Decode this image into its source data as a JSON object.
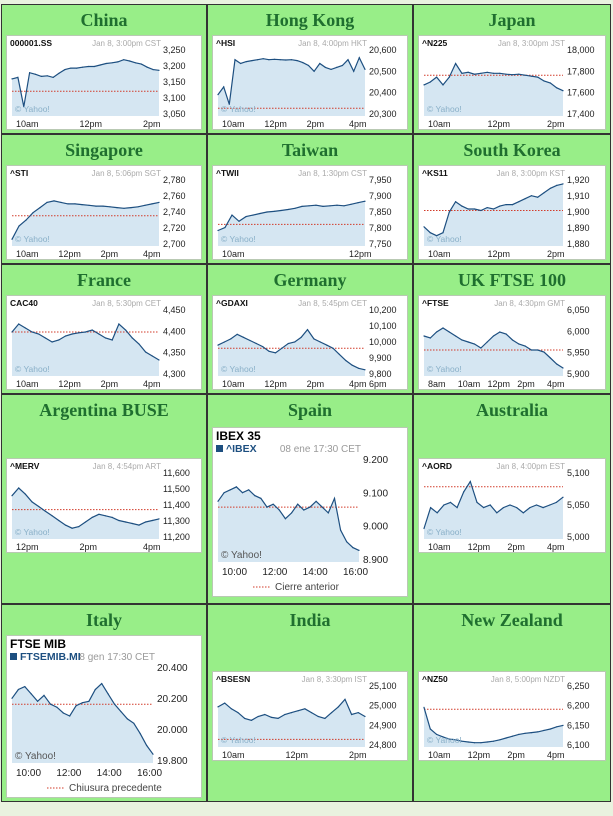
{
  "colors": {
    "cell_bg": "#98ee88",
    "title": "#1f6f2f",
    "line": "#1d4f80",
    "fill": "#d5e6f2",
    "ref": "#d23b2a"
  },
  "markets": [
    {
      "title": "China",
      "ticker": "000001.SS",
      "info": "Jan 8, 3:00pm CST",
      "watermark": "© Yahoo!",
      "xlabels": [
        "10am",
        "12pm",
        "2pm"
      ],
      "ylabels": [
        "3,250",
        "3,200",
        "3,150",
        "3,100",
        "3,050"
      ],
      "chart_data": {
        "type": "line",
        "ylim": [
          3040,
          3260
        ],
        "ref": 3120,
        "values": [
          3160,
          3165,
          3070,
          3180,
          3175,
          3168,
          3170,
          3165,
          3178,
          3190,
          3195,
          3195,
          3198,
          3200,
          3200,
          3205,
          3210,
          3212,
          3215,
          3222,
          3218,
          3212,
          3208,
          3198,
          3190,
          3188
        ]
      }
    },
    {
      "title": "Hong Kong",
      "ticker": "^HSI",
      "info": "Jan 8, 4:00pm HKT",
      "watermark": "© Yahoo!",
      "xlabels": [
        "10am",
        "12pm",
        "2pm",
        "4pm"
      ],
      "ylabels": [
        "20,600",
        "20,500",
        "20,400",
        "20,300"
      ],
      "chart_data": {
        "type": "line",
        "ylim": [
          20270,
          20620
        ],
        "ref": 20310,
        "values": [
          20380,
          20420,
          20330,
          20560,
          20540,
          20550,
          20555,
          20560,
          20565,
          20560,
          20562,
          20560,
          20558,
          20560,
          20555,
          20545,
          20530,
          20500,
          20540,
          20520,
          20510,
          20520,
          20530,
          20560,
          20500,
          20570,
          20510
        ]
      }
    },
    {
      "title": "Japan",
      "ticker": "^N225",
      "info": "Jan 8, 3:00pm JST",
      "watermark": "© Yahoo!",
      "xlabels": [
        "10am",
        "12pm",
        "2pm"
      ],
      "ylabels": [
        "18,000",
        "17,800",
        "17,600",
        "17,400"
      ],
      "chart_data": {
        "type": "line",
        "ylim": [
          17360,
          18060
        ],
        "ref": 17780,
        "values": [
          17680,
          17710,
          17760,
          17680,
          17760,
          17900,
          17800,
          17810,
          17790,
          17800,
          17810,
          17800,
          17800,
          17790,
          17785,
          17790,
          17780,
          17770,
          17760,
          17720,
          17700,
          17650,
          17620
        ]
      }
    },
    {
      "title": "Singapore",
      "ticker": "^STI",
      "info": "Jan 8, 5:06pm SGT",
      "watermark": "© Yahoo!",
      "xlabels": [
        "10am",
        "12pm",
        "2pm",
        "4pm"
      ],
      "ylabels": [
        "2,780",
        "2,760",
        "2,740",
        "2,720",
        "2,700"
      ],
      "chart_data": {
        "type": "line",
        "ylim": [
          2693,
          2785
        ],
        "ref": 2734,
        "values": [
          2702,
          2720,
          2728,
          2738,
          2745,
          2752,
          2754,
          2752,
          2750,
          2750,
          2749,
          2748,
          2747,
          2747,
          2746,
          2745,
          2744,
          2745,
          2746,
          2748,
          2750,
          2752
        ]
      }
    },
    {
      "title": "Taiwan",
      "ticker": "^TWII",
      "info": "Jan 8, 1:30pm CST",
      "watermark": "© Yahoo!",
      "xlabels": [
        "10am",
        "12pm"
      ],
      "ylabels": [
        "7,950",
        "7,900",
        "7,850",
        "7,800",
        "7,750"
      ],
      "chart_data": {
        "type": "line",
        "ylim": [
          7740,
          7960
        ],
        "ref": 7810,
        "values": [
          7790,
          7800,
          7840,
          7820,
          7835,
          7840,
          7845,
          7850,
          7852,
          7855,
          7858,
          7862,
          7868,
          7870,
          7872,
          7868,
          7870,
          7872,
          7870,
          7875,
          7880,
          7885
        ]
      }
    },
    {
      "title": "South Korea",
      "ticker": "^KS11",
      "info": "Jan 8, 3:00pm KST",
      "watermark": "© Yahoo!",
      "xlabels": [
        "10am",
        "12pm",
        "2pm"
      ],
      "ylabels": [
        "1,920",
        "1,910",
        "1,900",
        "1,890",
        "1,880"
      ],
      "chart_data": {
        "type": "line",
        "ylim": [
          1877,
          1923
        ],
        "ref": 1901,
        "values": [
          1890,
          1886,
          1884,
          1886,
          1900,
          1907,
          1904,
          1902,
          1902,
          1901,
          1903,
          1902,
          1904,
          1905,
          1905,
          1907,
          1909,
          1911,
          1910,
          1913,
          1916,
          1918,
          1919
        ]
      }
    },
    {
      "title": "France",
      "ticker": "CAC40",
      "info": "Jan 8, 5:30pm CET",
      "watermark": "© Yahoo!",
      "xlabels": [
        "10am",
        "12pm",
        "2pm",
        "4pm"
      ],
      "ylabels": [
        "4,450",
        "4,400",
        "4,350",
        "4,300"
      ],
      "chart_data": {
        "type": "line",
        "ylim": [
          4290,
          4460
        ],
        "ref": 4400,
        "values": [
          4400,
          4420,
          4410,
          4400,
          4395,
          4385,
          4375,
          4380,
          4390,
          4395,
          4398,
          4400,
          4405,
          4395,
          4385,
          4380,
          4420,
          4405,
          4385,
          4370,
          4350,
          4340,
          4330
        ]
      }
    },
    {
      "title": "Germany",
      "ticker": "^GDAXI",
      "info": "Jan 8, 5:45pm CET",
      "watermark": "© Yahoo!",
      "xlabels": [
        "10am",
        "12pm",
        "2pm",
        "4pm 6pm"
      ],
      "ylabels": [
        "10,200",
        "10,100",
        "10,000",
        "9,900",
        "9,800"
      ],
      "chart_data": {
        "type": "line",
        "ylim": [
          9780,
          10220
        ],
        "ref": 9960,
        "values": [
          9980,
          10000,
          10020,
          10050,
          10030,
          10010,
          9990,
          9970,
          9940,
          9930,
          9960,
          9990,
          10000,
          10030,
          10080,
          10020,
          10000,
          9980,
          9960,
          9920,
          9880,
          9850,
          9830,
          9820
        ]
      }
    },
    {
      "title": "UK FTSE 100",
      "ticker": "^FTSE",
      "info": "Jan 8, 4:30pm GMT",
      "watermark": "© Yahoo!",
      "xlabels": [
        "8am",
        "10am",
        "12pm",
        "2pm",
        "4pm"
      ],
      "ylabels": [
        "6,050",
        "6,000",
        "5,950",
        "5,900"
      ],
      "chart_data": {
        "type": "line",
        "ylim": [
          5890,
          6060
        ],
        "ref": 5955,
        "values": [
          5990,
          5985,
          6000,
          6010,
          6000,
          5990,
          5980,
          5975,
          5970,
          5960,
          5975,
          5990,
          6000,
          5995,
          5980,
          5970,
          5965,
          5955,
          5955,
          5950,
          5935,
          5920,
          5910
        ]
      }
    },
    {
      "title": "Argentina BUSE",
      "ticker": "^MERV",
      "info": "Jan 8, 4:54pm ART",
      "watermark": "© Yahoo!",
      "xlabels": [
        "12pm",
        "2pm",
        "4pm"
      ],
      "ylabels": [
        "11,600",
        "11,500",
        "11,400",
        "11,300",
        "11,200"
      ],
      "chart_data": {
        "type": "line",
        "ylim": [
          11180,
          11620
        ],
        "ref": 11370,
        "values": [
          11460,
          11510,
          11470,
          11420,
          11390,
          11360,
          11330,
          11300,
          11270,
          11250,
          11260,
          11290,
          11320,
          11340,
          11330,
          11320,
          11300,
          11290,
          11280,
          11270,
          11290,
          11300,
          11310
        ]
      }
    },
    {
      "title": "Spain",
      "ticker_label": "IBEX 35",
      "ticker": "^IBEX",
      "info": "08 ene 17:30 CET",
      "watermark": "© Yahoo!",
      "legend": "Cierre anterior",
      "xlabels": [
        "10:00",
        "12:00",
        "14:00",
        "16:00"
      ],
      "ylabels": [
        "9.200",
        "9.100",
        "9.000",
        "8.900"
      ],
      "chart_data": {
        "type": "line",
        "ylim": [
          8870,
          9230
        ],
        "ref": 9060,
        "values": [
          9080,
          9110,
          9120,
          9130,
          9110,
          9120,
          9100,
          9090,
          9060,
          9070,
          9050,
          9020,
          9040,
          9070,
          9050,
          9060,
          9080,
          9060,
          9040,
          9090,
          8980,
          8940,
          8920,
          8910
        ]
      }
    },
    {
      "title": "Australia",
      "ticker": "^AORD",
      "info": "Jan 8, 4:00pm EST",
      "watermark": "© Yahoo!",
      "xlabels": [
        "10am",
        "12pm",
        "2pm",
        "4pm"
      ],
      "ylabels": [
        "5,100",
        "5,050",
        "5,000"
      ],
      "chart_data": {
        "type": "line",
        "ylim": [
          4980,
          5110
        ],
        "ref": 5080,
        "values": [
          5000,
          5040,
          5030,
          5045,
          5050,
          5040,
          5070,
          5090,
          5050,
          5040,
          5045,
          5030,
          5040,
          5045,
          5040,
          5030,
          5040,
          5045,
          5040,
          5045,
          5050,
          5060
        ]
      }
    },
    {
      "title": "Italy",
      "ticker_label": "FTSE MIB",
      "ticker": "FTSEMIB.MI",
      "info": "8 gen 17:30 CET",
      "watermark": "© Yahoo!",
      "legend": "Chiusura precedente",
      "xlabels": [
        "10:00",
        "12:00",
        "14:00",
        "16:00"
      ],
      "ylabels": [
        "20.400",
        "20.200",
        "20.000",
        "19.800"
      ],
      "chart_data": {
        "type": "line",
        "ylim": [
          19780,
          20440
        ],
        "ref": 20180,
        "values": [
          20220,
          20280,
          20300,
          20250,
          20200,
          20240,
          20180,
          20160,
          20120,
          20100,
          20170,
          20190,
          20200,
          20280,
          20320,
          20250,
          20180,
          20130,
          20080,
          20050,
          19980,
          19900,
          19840
        ]
      }
    },
    {
      "title": "India",
      "ticker": "^BSESN",
      "info": "Jan 8, 3:30pm IST",
      "watermark": "© Yahoo!",
      "xlabels": [
        "10am",
        "12pm",
        "2pm"
      ],
      "ylabels": [
        "25,100",
        "25,000",
        "24,900",
        "24,800"
      ],
      "chart_data": {
        "type": "line",
        "ylim": [
          24780,
          25110
        ],
        "ref": 24820,
        "values": [
          24990,
          25010,
          24980,
          24960,
          24930,
          24920,
          24940,
          24950,
          24935,
          24930,
          24950,
          24960,
          24970,
          24980,
          24960,
          24940,
          24930,
          24960,
          24990,
          25030,
          24950,
          24960,
          24940
        ]
      }
    },
    {
      "title": "New Zealand",
      "ticker": "^NZ50",
      "info": "Jan 8, 5:00pm NZDT",
      "watermark": "© Yahoo!",
      "xlabels": [
        "10am",
        "12pm",
        "2pm",
        "4pm"
      ],
      "ylabels": [
        "6,250",
        "6,200",
        "6,150",
        "6,100"
      ],
      "chart_data": {
        "type": "line",
        "ylim": [
          6090,
          6265
        ],
        "ref": 6195,
        "values": [
          6200,
          6140,
          6125,
          6118,
          6112,
          6110,
          6106,
          6104,
          6102,
          6102,
          6104,
          6106,
          6110,
          6115,
          6120,
          6125,
          6128,
          6130,
          6132,
          6136,
          6140,
          6146,
          6150
        ]
      }
    }
  ]
}
